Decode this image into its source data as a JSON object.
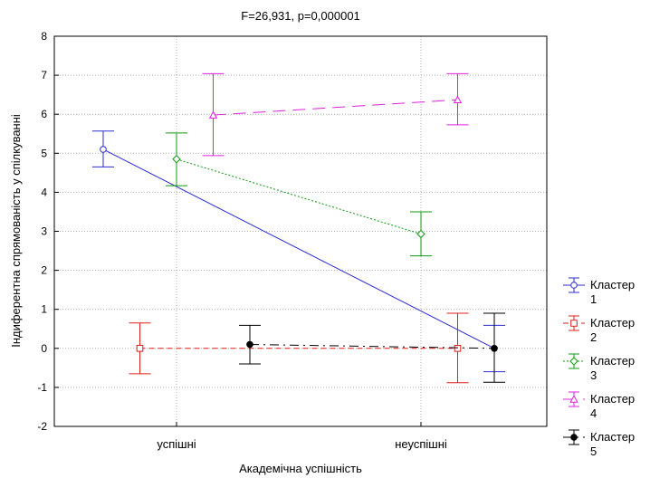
{
  "chart_data": {
    "type": "line",
    "title": "F=26,931, p=0,000001",
    "xlabel": "Академічна успішність",
    "ylabel": "Індиферентна спрямованість у спілкуванні",
    "categories": [
      "успішні",
      "неуспішні"
    ],
    "ylim": [
      -2,
      8
    ],
    "yticks": [
      "-2",
      "-1",
      "0",
      "1",
      "2",
      "3",
      "4",
      "5",
      "6",
      "7",
      "8"
    ],
    "grid": true,
    "legend_position": "right",
    "series": [
      {
        "name": "Кластер 1",
        "color": "#2b2bd6",
        "dash": "solid",
        "marker": "circle-open",
        "values": [
          5.1,
          0.0
        ],
        "lower": [
          4.65,
          -0.6
        ],
        "upper": [
          5.57,
          0.59
        ],
        "offset": [
          -0.3,
          0.3
        ]
      },
      {
        "name": "Кластер 2",
        "color": "#e0201c",
        "dash": "dashed",
        "marker": "square-open",
        "values": [
          0.0,
          0.0
        ],
        "lower": [
          -0.65,
          -0.88
        ],
        "upper": [
          0.65,
          0.9
        ],
        "offset": [
          -0.15,
          0.15
        ]
      },
      {
        "name": "Кластер 3",
        "color": "#119a11",
        "dash": "dotted",
        "marker": "diamond-open",
        "values": [
          4.85,
          2.93
        ],
        "lower": [
          4.17,
          2.37
        ],
        "upper": [
          5.52,
          3.5
        ],
        "offset": [
          0.0,
          0.0
        ]
      },
      {
        "name": "Кластер 4",
        "color": "#e020e0",
        "dash": "longdash",
        "marker": "triangle-open",
        "values": [
          5.98,
          6.37
        ],
        "lower": [
          4.94,
          5.73
        ],
        "upper": [
          7.04,
          7.04
        ],
        "offset": [
          0.15,
          0.15
        ]
      },
      {
        "name": "Кластер 5",
        "color": "#000000",
        "dash": "dashdot",
        "marker": "circle-filled",
        "values": [
          0.1,
          0.0
        ],
        "lower": [
          -0.4,
          -0.87
        ],
        "upper": [
          0.59,
          0.9
        ],
        "offset": [
          0.3,
          0.3
        ]
      }
    ]
  }
}
